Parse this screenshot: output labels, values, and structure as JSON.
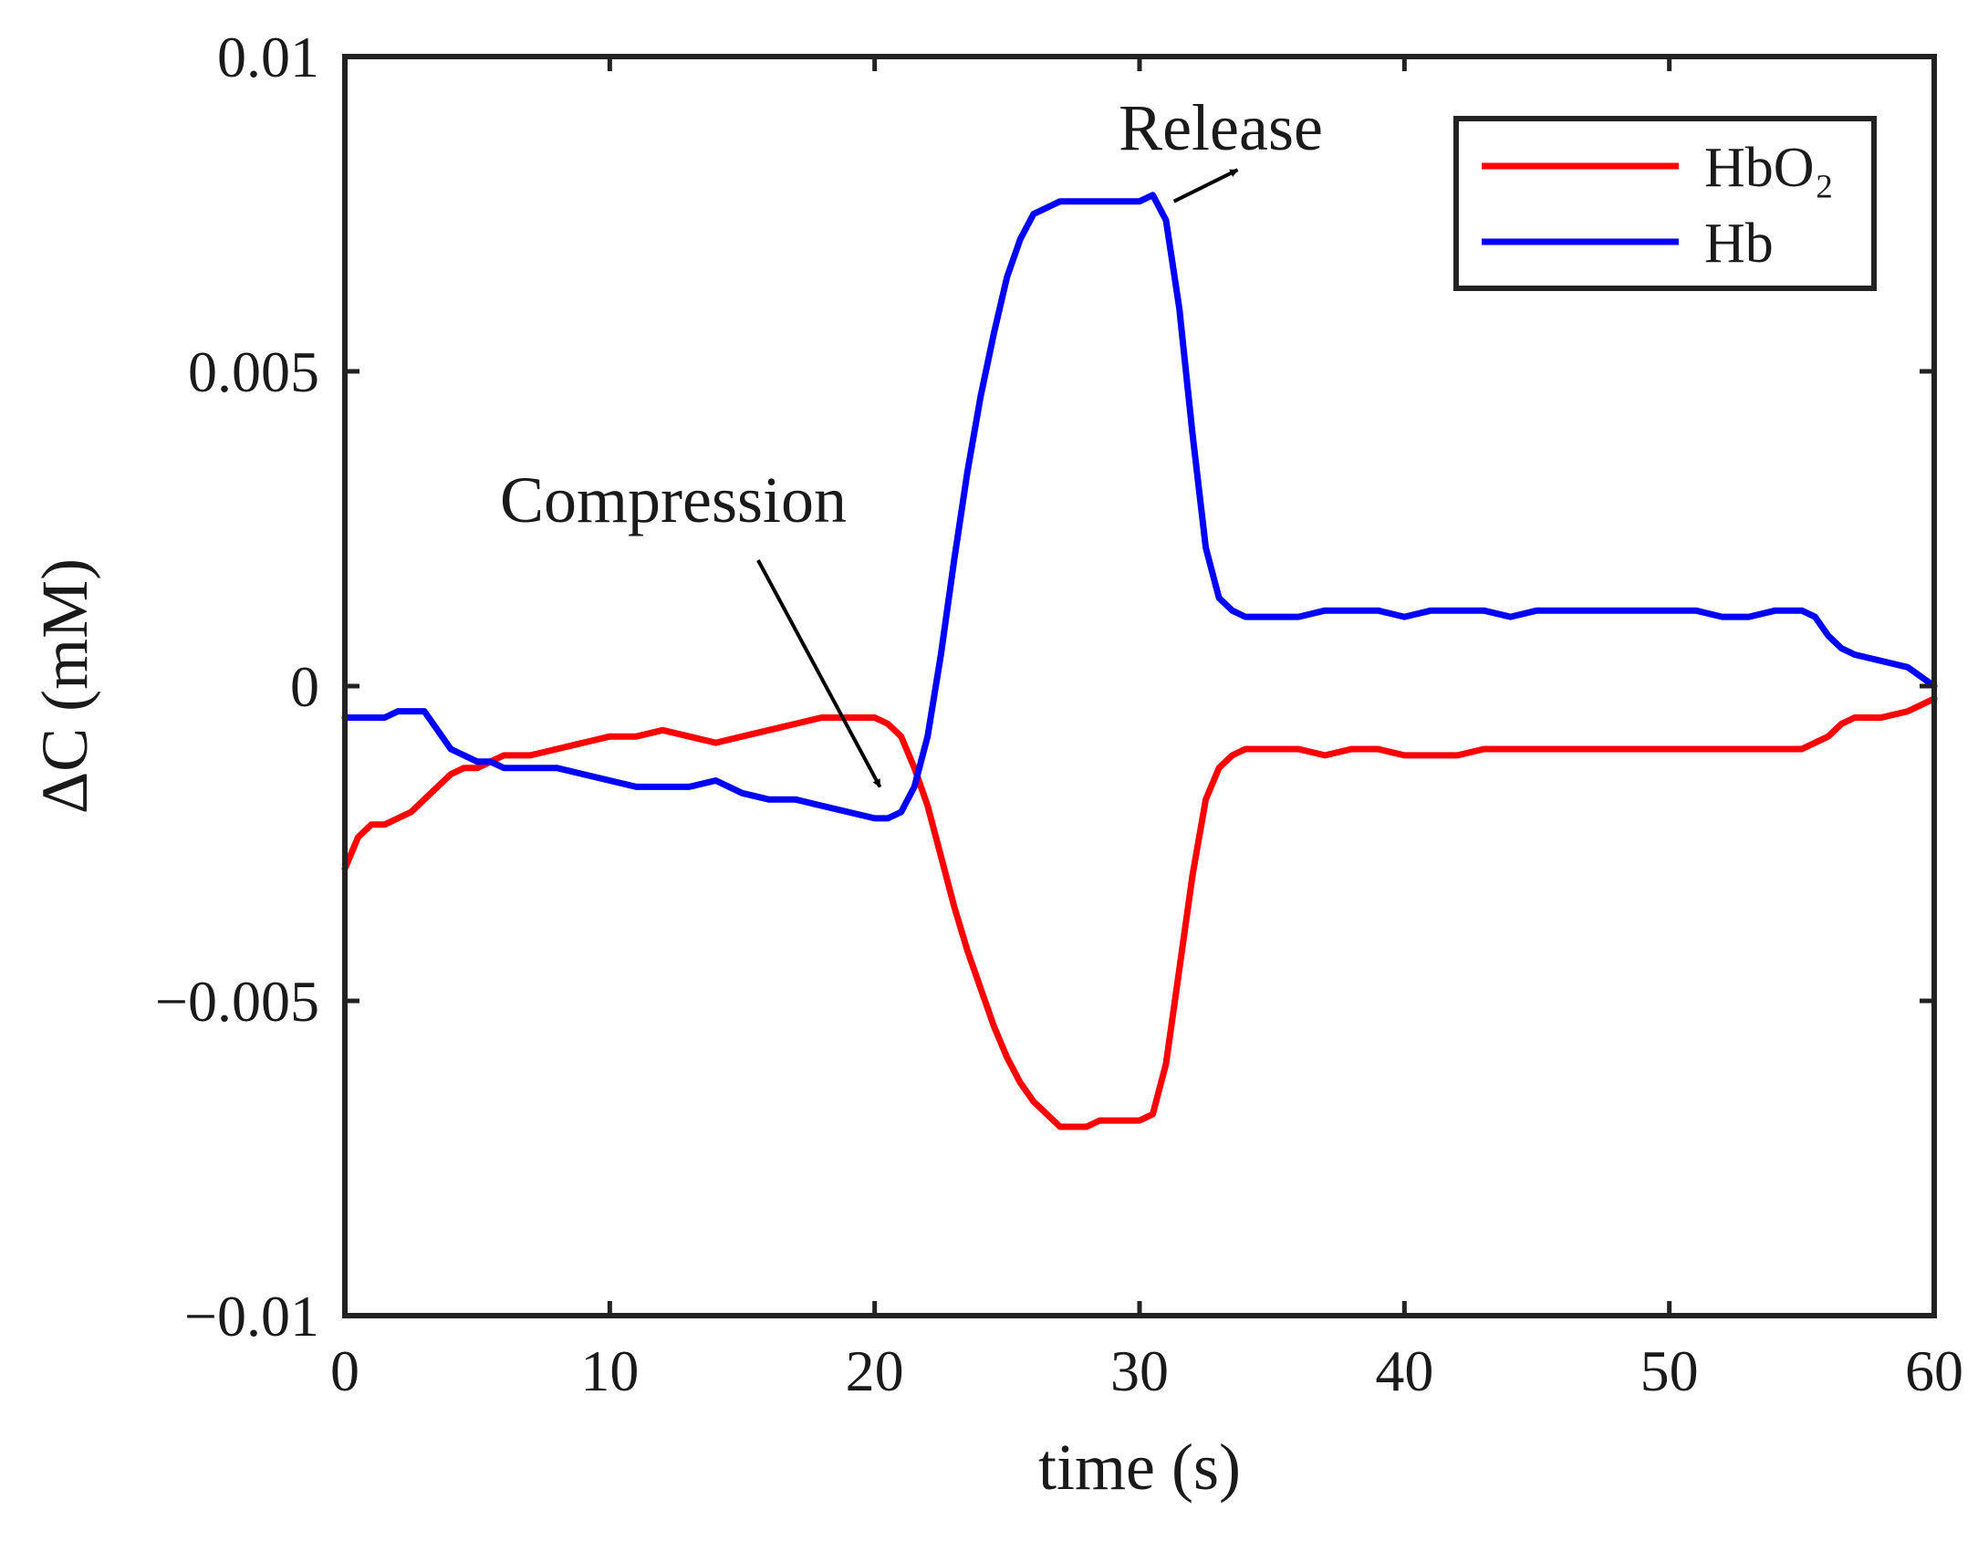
{
  "chart_data": {
    "type": "line",
    "title": "",
    "xlabel": "time (s)",
    "ylabel": "ΔC (mM)",
    "xlim": [
      0,
      60
    ],
    "ylim": [
      -0.01,
      0.01
    ],
    "xticks": [
      0,
      10,
      20,
      30,
      40,
      50,
      60
    ],
    "xtick_labels": [
      "0",
      "10",
      "20",
      "30",
      "40",
      "50",
      "60"
    ],
    "yticks": [
      0.01,
      0.005,
      0,
      -0.005,
      -0.01
    ],
    "ytick_labels": [
      "0.01",
      "0.005",
      "0",
      "−0.005",
      "−0.01"
    ],
    "grid": false,
    "legend_position": "top-right",
    "series": [
      {
        "name": "HbO₂",
        "color": "#ff0000",
        "x": [
          0,
          0.5,
          1,
          1.5,
          2,
          2.5,
          3,
          3.5,
          4,
          4.5,
          5,
          5.5,
          6,
          7,
          8,
          9,
          10,
          11,
          12,
          13,
          14,
          15,
          16,
          17,
          18,
          19,
          20,
          20.5,
          21,
          21.5,
          22,
          22.5,
          23,
          23.5,
          24,
          24.5,
          25,
          25.5,
          26,
          26.5,
          27,
          27.5,
          28,
          28.5,
          29,
          29.5,
          30,
          30.5,
          31,
          31.5,
          32,
          32.5,
          33,
          33.5,
          34,
          35,
          36,
          37,
          38,
          39,
          40,
          41,
          42,
          43,
          44,
          45,
          46,
          47,
          48,
          49,
          50,
          51,
          52,
          53,
          54,
          55,
          55.5,
          56,
          56.5,
          57,
          58,
          59,
          60
        ],
        "y": [
          -0.0029,
          -0.0024,
          -0.0022,
          -0.0022,
          -0.0021,
          -0.002,
          -0.0018,
          -0.0016,
          -0.0014,
          -0.0013,
          -0.0013,
          -0.0012,
          -0.0011,
          -0.0011,
          -0.001,
          -0.0009,
          -0.0008,
          -0.0008,
          -0.0007,
          -0.0008,
          -0.0009,
          -0.0008,
          -0.0007,
          -0.0006,
          -0.0005,
          -0.0005,
          -0.0005,
          -0.0006,
          -0.0008,
          -0.0013,
          -0.0019,
          -0.0027,
          -0.0035,
          -0.0042,
          -0.0048,
          -0.0054,
          -0.0059,
          -0.0063,
          -0.0066,
          -0.0068,
          -0.007,
          -0.007,
          -0.007,
          -0.0069,
          -0.0069,
          -0.0069,
          -0.0069,
          -0.0068,
          -0.006,
          -0.0045,
          -0.003,
          -0.0018,
          -0.0013,
          -0.0011,
          -0.001,
          -0.001,
          -0.001,
          -0.0011,
          -0.001,
          -0.001,
          -0.0011,
          -0.0011,
          -0.0011,
          -0.001,
          -0.001,
          -0.001,
          -0.001,
          -0.001,
          -0.001,
          -0.001,
          -0.001,
          -0.001,
          -0.001,
          -0.001,
          -0.001,
          -0.001,
          -0.0009,
          -0.0008,
          -0.0006,
          -0.0005,
          -0.0005,
          -0.0004,
          -0.0002
        ]
      },
      {
        "name": "Hb",
        "color": "#0000ff",
        "x": [
          0,
          0.5,
          1,
          1.5,
          2,
          2.5,
          3,
          3.5,
          4,
          4.5,
          5,
          5.5,
          6,
          7,
          8,
          9,
          10,
          11,
          12,
          13,
          14,
          15,
          16,
          17,
          18,
          19,
          20,
          20.5,
          21,
          21.5,
          22,
          22.5,
          23,
          23.5,
          24,
          24.5,
          25,
          25.5,
          26,
          26.5,
          27,
          27.5,
          28,
          28.5,
          29,
          29.5,
          30,
          30.5,
          31,
          31.5,
          32,
          32.5,
          33,
          33.5,
          34,
          35,
          36,
          37,
          38,
          39,
          40,
          41,
          42,
          43,
          44,
          45,
          46,
          47,
          48,
          49,
          50,
          51,
          52,
          53,
          54,
          55,
          55.5,
          56,
          56.5,
          57,
          58,
          59,
          60
        ],
        "y": [
          -0.0005,
          -0.0005,
          -0.0005,
          -0.0005,
          -0.0004,
          -0.0004,
          -0.0004,
          -0.0007,
          -0.001,
          -0.0011,
          -0.0012,
          -0.0012,
          -0.0013,
          -0.0013,
          -0.0013,
          -0.0014,
          -0.0015,
          -0.0016,
          -0.0016,
          -0.0016,
          -0.0015,
          -0.0017,
          -0.0018,
          -0.0018,
          -0.0019,
          -0.002,
          -0.0021,
          -0.0021,
          -0.002,
          -0.0016,
          -0.0008,
          0.0005,
          0.002,
          0.0034,
          0.0046,
          0.0056,
          0.0065,
          0.0071,
          0.0075,
          0.0076,
          0.0077,
          0.0077,
          0.0077,
          0.0077,
          0.0077,
          0.0077,
          0.0077,
          0.0078,
          0.0074,
          0.006,
          0.004,
          0.0022,
          0.0014,
          0.0012,
          0.0011,
          0.0011,
          0.0011,
          0.0012,
          0.0012,
          0.0012,
          0.0011,
          0.0012,
          0.0012,
          0.0012,
          0.0011,
          0.0012,
          0.0012,
          0.0012,
          0.0012,
          0.0012,
          0.0012,
          0.0012,
          0.0011,
          0.0011,
          0.0012,
          0.0012,
          0.0011,
          0.0008,
          0.0006,
          0.0005,
          0.0004,
          0.0003,
          0.0
        ]
      }
    ],
    "annotations": [
      {
        "text": "Compression",
        "arrow_from": [
          15.6,
          0.002
        ],
        "arrow_to": [
          20.2,
          -0.0016
        ]
      },
      {
        "text": "Release",
        "arrow_from": [
          31.3,
          0.0077
        ],
        "arrow_to": [
          33.7,
          0.0082
        ]
      }
    ]
  }
}
